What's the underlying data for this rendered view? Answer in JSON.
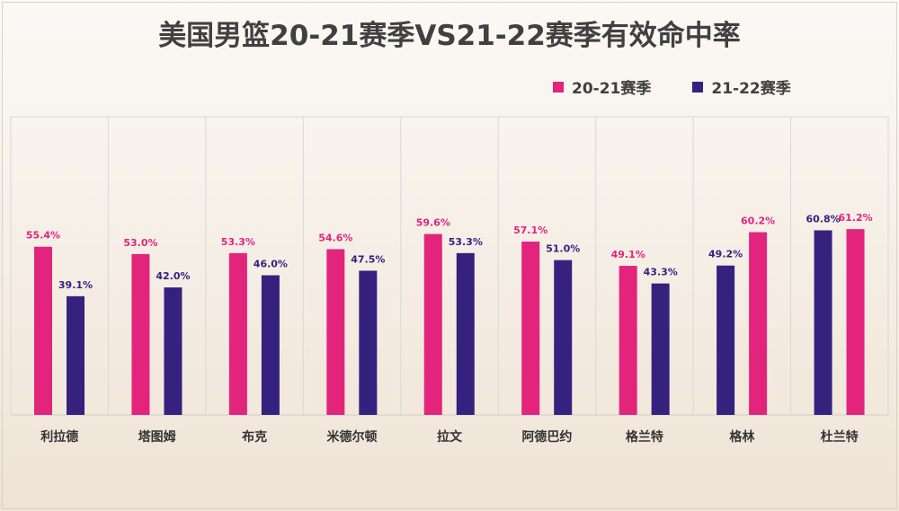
{
  "chart_data": {
    "type": "bar",
    "title": "美国男篮20-21赛季VS21-22赛季有效命中率",
    "categories": [
      "利拉德",
      "塔图姆",
      "布克",
      "米德尔顿",
      "拉文",
      "阿德巴约",
      "格兰特",
      "格林",
      "杜兰特"
    ],
    "series": [
      {
        "name": "20-21赛季",
        "color": "#e3247c",
        "values": [
          55.4,
          53.0,
          53.3,
          54.6,
          59.6,
          57.1,
          49.1,
          60.2,
          61.2
        ],
        "labels": [
          "55.4%",
          "53.0%",
          "53.3%",
          "54.6%",
          "59.6%",
          "57.1%",
          "49.1%",
          "60.2%",
          "61.2%"
        ]
      },
      {
        "name": "21-22赛季",
        "color": "#35217e",
        "values": [
          39.1,
          42.0,
          46.0,
          47.5,
          53.3,
          51.0,
          43.3,
          49.2,
          60.8
        ],
        "labels": [
          "39.1%",
          "42.0%",
          "46.0%",
          "47.5%",
          "53.3%",
          "51.0%",
          "43.3%",
          "49.2%",
          "60.8%"
        ]
      }
    ],
    "bar_order": [
      [
        "20-21赛季",
        "21-22赛季"
      ],
      [
        "20-21赛季",
        "21-22赛季"
      ],
      [
        "20-21赛季",
        "21-22赛季"
      ],
      [
        "20-21赛季",
        "21-22赛季"
      ],
      [
        "20-21赛季",
        "21-22赛季"
      ],
      [
        "20-21赛季",
        "21-22赛季"
      ],
      [
        "20-21赛季",
        "21-22赛季"
      ],
      [
        "21-22赛季",
        "20-21赛季"
      ],
      [
        "21-22赛季",
        "20-21赛季"
      ]
    ],
    "ylim": [
      0,
      70
    ],
    "xlabel": "",
    "ylabel": "",
    "legend_position": "top-right",
    "grid": "vertical-separators"
  }
}
